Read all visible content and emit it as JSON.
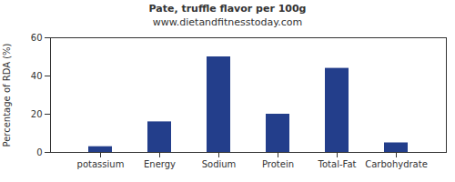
{
  "chart_data": {
    "type": "bar",
    "title": "Pate, truffle flavor per 100g",
    "subtitle": "www.dietandfitnesstoday.com",
    "y_label": "Percentage of RDA (%)",
    "categories": [
      "potassium",
      "Energy",
      "Sodium",
      "Protein",
      "Total-Fat",
      "Carbohydrate"
    ],
    "values": [
      3,
      16,
      50,
      20,
      44,
      5
    ],
    "color": "#233e8b",
    "ylim": [
      0,
      60
    ],
    "yticks": [
      0,
      20,
      40,
      60
    ],
    "grid": false
  }
}
